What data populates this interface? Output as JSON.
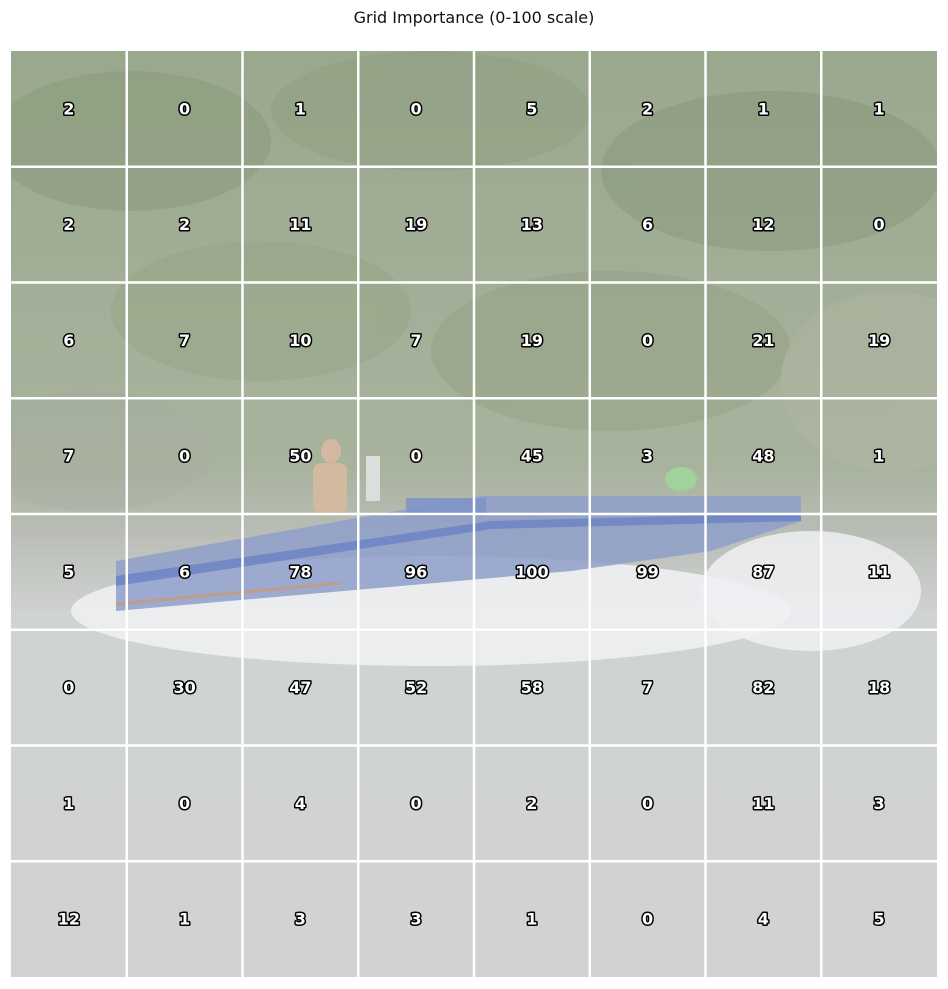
{
  "chart_data": {
    "type": "heatmap",
    "title": "Grid Importance (0-100 scale)",
    "rows": 8,
    "cols": 8,
    "value_range": [
      0,
      100
    ],
    "values": [
      [
        2,
        0,
        1,
        0,
        5,
        2,
        1,
        1
      ],
      [
        2,
        2,
        11,
        19,
        13,
        6,
        12,
        0
      ],
      [
        6,
        7,
        10,
        7,
        19,
        0,
        21,
        19
      ],
      [
        7,
        0,
        50,
        0,
        45,
        3,
        48,
        1
      ],
      [
        5,
        6,
        78,
        96,
        100,
        99,
        87,
        11
      ],
      [
        0,
        30,
        47,
        52,
        58,
        7,
        82,
        18
      ],
      [
        1,
        0,
        4,
        0,
        2,
        0,
        11,
        3
      ],
      [
        12,
        1,
        3,
        3,
        1,
        0,
        4,
        5
      ]
    ],
    "grid": true,
    "grid_color": "#ffffff",
    "background_image": "speedboat-on-river-photo",
    "colors": {
      "foliage_top": "#9aa88e",
      "foliage_mid": "#a6b29a",
      "water": "#cfd2d3",
      "spray": "#eef0f2",
      "boat_hull": "#8e9fc9",
      "boat_stripe": "#6f86c4",
      "boat_trim": "#c89a7a",
      "person_skin": "#d7b9a0",
      "green_fender": "#9fd59a"
    }
  }
}
